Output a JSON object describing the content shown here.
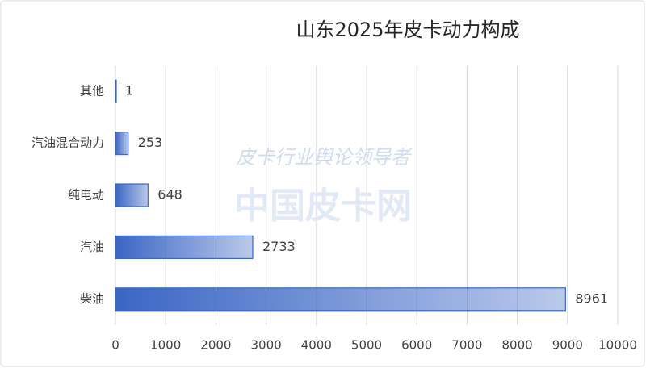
{
  "chart_data": {
    "type": "bar",
    "orientation": "horizontal",
    "title": "山东2025年皮卡动力构成",
    "categories": [
      "其他",
      "汽油混合动力",
      "纯电动",
      "汽油",
      "柴油"
    ],
    "values": [
      1,
      253,
      648,
      2733,
      8961
    ],
    "color": "#3a66c4",
    "xlim": [
      0,
      10000
    ],
    "xticks": [
      0,
      1000,
      2000,
      3000,
      4000,
      5000,
      6000,
      7000,
      8000,
      9000,
      10000
    ],
    "grid": true,
    "watermark": [
      "皮卡行业舆论领导者",
      "中国皮卡网"
    ]
  }
}
